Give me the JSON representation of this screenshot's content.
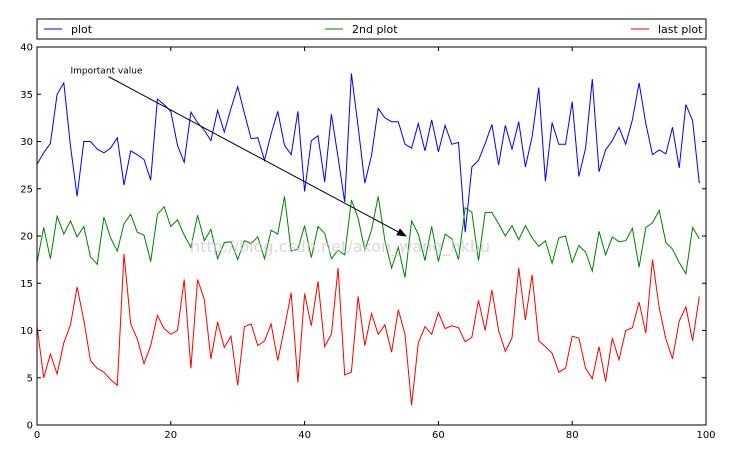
{
  "chart_data": {
    "type": "line",
    "title": "",
    "xlabel": "",
    "ylabel": "",
    "xlim": [
      0,
      100
    ],
    "ylim": [
      0,
      40
    ],
    "xticks": [
      0,
      20,
      40,
      60,
      80,
      100
    ],
    "yticks": [
      0,
      5,
      10,
      15,
      20,
      25,
      30,
      35,
      40
    ],
    "xtick_labels": [
      "0",
      "20",
      "40",
      "60",
      "80",
      "100"
    ],
    "ytick_labels": [
      "0",
      "5",
      "10",
      "15",
      "20",
      "25",
      "30",
      "35",
      "40"
    ],
    "grid": false,
    "legend": {
      "placement": "top, above axes, spanning full width",
      "columns": 3
    },
    "series": [
      {
        "name": "plot",
        "color": "#0000ff",
        "x": [
          0,
          1,
          2,
          3,
          4,
          5,
          6,
          7,
          8,
          9,
          10,
          11,
          12,
          13,
          14,
          15,
          16,
          17,
          18,
          19,
          20,
          21,
          22,
          23,
          24,
          25,
          26,
          27,
          28,
          29,
          30,
          31,
          32,
          33,
          34,
          35,
          36,
          37,
          38,
          39,
          40,
          41,
          42,
          43,
          44,
          45,
          46,
          47,
          48,
          49,
          50,
          51,
          52,
          53,
          54,
          55,
          56,
          57,
          58,
          59,
          60,
          61,
          62,
          63,
          64,
          65,
          66,
          67,
          68,
          69,
          70,
          71,
          72,
          73,
          74,
          75,
          76,
          77,
          78,
          79,
          80,
          81,
          82,
          83,
          84,
          85,
          86,
          87,
          88,
          89,
          90,
          91,
          92,
          93,
          94,
          95,
          96,
          97,
          98,
          99
        ],
        "values": [
          27.6,
          28.8,
          29.8,
          35.0,
          36.2,
          29.5,
          24.2,
          30.0,
          30.0,
          29.2,
          28.8,
          29.3,
          30.4,
          25.4,
          29.0,
          28.6,
          28.1,
          25.9,
          34.5,
          33.9,
          33.2,
          29.6,
          27.8,
          33.1,
          32.0,
          31.2,
          30.1,
          33.3,
          31.0,
          33.5,
          35.8,
          33.0,
          30.3,
          30.4,
          28.0,
          30.8,
          33.2,
          29.6,
          28.6,
          33.2,
          24.7,
          30.1,
          30.6,
          25.7,
          32.9,
          28.3,
          23.6,
          37.2,
          31.6,
          25.6,
          28.5,
          33.5,
          32.5,
          32.1,
          32.1,
          29.7,
          29.3,
          31.9,
          29.0,
          32.3,
          28.9,
          31.7,
          29.7,
          29.9,
          20.4,
          27.3,
          28.0,
          29.8,
          31.8,
          27.5,
          31.7,
          29.2,
          32.1,
          27.3,
          30.5,
          35.7,
          25.8,
          32.0,
          29.7,
          29.7,
          34.2,
          26.3,
          29.3,
          36.6,
          26.8,
          29.1,
          30.1,
          31.5,
          29.7,
          32.3,
          36.2,
          31.9,
          28.6,
          29.1,
          28.7,
          31.5,
          27.2,
          33.9,
          32.2,
          25.6
        ]
      },
      {
        "name": "2nd plot",
        "color": "#008000",
        "x": [
          0,
          1,
          2,
          3,
          4,
          5,
          6,
          7,
          8,
          9,
          10,
          11,
          12,
          13,
          14,
          15,
          16,
          17,
          18,
          19,
          20,
          21,
          22,
          23,
          24,
          25,
          26,
          27,
          28,
          29,
          30,
          31,
          32,
          33,
          34,
          35,
          36,
          37,
          38,
          39,
          40,
          41,
          42,
          43,
          44,
          45,
          46,
          47,
          48,
          49,
          50,
          51,
          52,
          53,
          54,
          55,
          56,
          57,
          58,
          59,
          60,
          61,
          62,
          63,
          64,
          65,
          66,
          67,
          68,
          69,
          70,
          71,
          72,
          73,
          74,
          75,
          76,
          77,
          78,
          79,
          80,
          81,
          82,
          83,
          84,
          85,
          86,
          87,
          88,
          89,
          90,
          91,
          92,
          93,
          94,
          95,
          96,
          97,
          98,
          99
        ],
        "values": [
          17.2,
          20.9,
          17.6,
          22.1,
          20.2,
          21.6,
          19.9,
          21.0,
          17.8,
          17.0,
          22.0,
          19.8,
          18.4,
          21.3,
          22.3,
          20.4,
          20.1,
          17.3,
          22.3,
          23.1,
          21.0,
          21.7,
          20.1,
          18.8,
          22.2,
          19.5,
          20.7,
          17.6,
          19.3,
          19.4,
          17.5,
          19.5,
          19.2,
          19.9,
          17.6,
          20.6,
          20.2,
          24.2,
          18.4,
          18.6,
          21.1,
          17.7,
          21.0,
          20.3,
          17.6,
          18.5,
          18.0,
          23.8,
          21.9,
          18.5,
          20.6,
          24.2,
          19.5,
          16.6,
          18.8,
          15.6,
          21.6,
          20.2,
          17.4,
          21.0,
          17.3,
          20.2,
          19.7,
          17.5,
          23.0,
          22.5,
          17.4,
          22.5,
          22.5,
          21.3,
          20.0,
          21.1,
          19.6,
          21.1,
          19.8,
          18.9,
          19.5,
          17.1,
          19.8,
          20.0,
          17.2,
          19.0,
          18.3,
          16.3,
          20.5,
          18.0,
          19.9,
          19.4,
          19.5,
          20.8,
          16.7,
          20.9,
          21.4,
          22.7,
          19.3,
          18.6,
          17.2,
          16.0,
          20.9,
          19.7
        ]
      },
      {
        "name": "last plot",
        "color": "#ff0000",
        "x": [
          0,
          1,
          2,
          3,
          4,
          5,
          6,
          7,
          8,
          9,
          10,
          11,
          12,
          13,
          14,
          15,
          16,
          17,
          18,
          19,
          20,
          21,
          22,
          23,
          24,
          25,
          26,
          27,
          28,
          29,
          30,
          31,
          32,
          33,
          34,
          35,
          36,
          37,
          38,
          39,
          40,
          41,
          42,
          43,
          44,
          45,
          46,
          47,
          48,
          49,
          50,
          51,
          52,
          53,
          54,
          55,
          56,
          57,
          58,
          59,
          60,
          61,
          62,
          63,
          64,
          65,
          66,
          67,
          68,
          69,
          70,
          71,
          72,
          73,
          74,
          75,
          76,
          77,
          78,
          79,
          80,
          81,
          82,
          83,
          84,
          85,
          86,
          87,
          88,
          89,
          90,
          91,
          92,
          93,
          94,
          95,
          96,
          97,
          98,
          99
        ],
        "values": [
          10.5,
          5.0,
          7.5,
          5.4,
          8.7,
          10.6,
          14.6,
          11.1,
          6.8,
          6.0,
          5.6,
          4.8,
          4.2,
          18.1,
          10.7,
          9.1,
          6.5,
          8.4,
          11.6,
          10.2,
          9.6,
          10.0,
          15.4,
          6.0,
          15.4,
          13.3,
          7.0,
          10.9,
          8.2,
          9.4,
          4.2,
          10.4,
          10.7,
          8.4,
          8.9,
          10.7,
          6.8,
          10.3,
          14.0,
          4.5,
          13.9,
          10.5,
          15.2,
          8.3,
          9.6,
          16.6,
          5.3,
          5.6,
          13.6,
          8.4,
          11.8,
          9.6,
          10.6,
          7.7,
          12.2,
          9.6,
          2.1,
          8.7,
          10.4,
          9.6,
          11.9,
          10.2,
          10.5,
          10.3,
          8.8,
          9.3,
          13.2,
          10.0,
          14.3,
          10.0,
          7.8,
          9.2,
          16.6,
          11.1,
          15.9,
          8.9,
          8.3,
          7.6,
          5.6,
          6.0,
          9.4,
          9.2,
          6.0,
          4.9,
          8.3,
          4.6,
          9.2,
          6.9,
          10.0,
          10.3,
          13.0,
          9.7,
          17.5,
          12.4,
          9.1,
          7.0,
          11.0,
          12.5,
          8.9,
          13.6
        ]
      }
    ],
    "annotation": {
      "text": "Important value",
      "xy": [
        55,
        20
      ],
      "xytext": [
        5,
        37.5
      ]
    }
  },
  "watermark": "http://blog.csdn.net/akon_wang_hkbu"
}
